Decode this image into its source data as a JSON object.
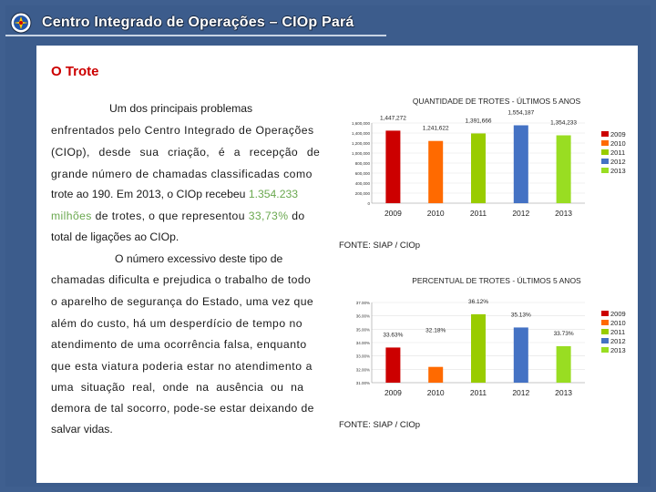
{
  "header": {
    "title": "Centro Integrado de Operações – CIOp Pará"
  },
  "section": {
    "title": "O Trote"
  },
  "paragraph1": {
    "lines": [
      "Um dos principais problemas",
      "enfrentados pelo Centro Integrado de Operações",
      "(CIOp), desde sua criação, é a recepção de",
      "grande número de chamadas classificadas como"
    ],
    "line5_a": "trote ao 190. Em 2013, o CIOp recebeu ",
    "line5_highlight": "1.354.233",
    "line6_highlight": "milhões",
    "line6_b": " de trotes, o que representou ",
    "line6_highlight2": "33,73%",
    "line6_c": " do",
    "line7": "total de ligações ao CIOp."
  },
  "paragraph2": {
    "lines": [
      "O número excessivo deste tipo de",
      "chamadas dificulta e prejudica o trabalho de todo",
      "o aparelho de segurança do Estado, uma vez que",
      "além do custo, há um desperdício de tempo no",
      "atendimento de uma ocorrência falsa, enquanto",
      "que esta viatura poderia estar no atendimento a",
      "uma situação real, onde na ausência ou na",
      "demora de tal socorro, pode-se estar deixando de",
      "salvar vidas."
    ]
  },
  "chart_data": [
    {
      "type": "bar",
      "title": "QUANTIDADE DE TROTES - ÚLTIMOS 5 ANOS",
      "categories": [
        "2009",
        "2010",
        "2011",
        "2012",
        "2013"
      ],
      "values": [
        1447272,
        1241622,
        1391666,
        1554187,
        1354233
      ],
      "data_labels": [
        "1,447,272",
        "1,241,622",
        "1,391,666",
        "1,554,187",
        "1,354,233"
      ],
      "colors": [
        "#cc0000",
        "#ff6a00",
        "#99cc00",
        "#4472c4",
        "#99dd22"
      ],
      "ylim": [
        0,
        1600000
      ],
      "yticks": [
        0,
        200000,
        400000,
        600000,
        800000,
        1000000,
        1200000,
        1400000,
        1600000
      ],
      "ytick_labels": [
        "0",
        "200,000",
        "400,000",
        "600,000",
        "800,000",
        "1,000,000",
        "1,200,000",
        "1,400,000",
        "1,600,000"
      ],
      "legend": [
        "2009",
        "2010",
        "2011",
        "2012",
        "2013"
      ],
      "legend_position": "right",
      "grid": true,
      "source": "FONTE: SIAP / CIOp"
    },
    {
      "type": "bar",
      "title": "PERCENTUAL DE TROTES - ÚLTIMOS 5 ANOS",
      "categories": [
        "2009",
        "2010",
        "2011",
        "2012",
        "2013"
      ],
      "values": [
        33.63,
        32.18,
        36.12,
        35.13,
        33.73
      ],
      "data_labels": [
        "33.63%",
        "32.18%",
        "36.12%",
        "35.13%",
        "33.73%"
      ],
      "colors": [
        "#cc0000",
        "#ff6a00",
        "#99cc00",
        "#4472c4",
        "#99dd22"
      ],
      "ylim": [
        31,
        37
      ],
      "yticks": [
        31,
        32,
        33,
        34,
        35,
        36,
        37
      ],
      "ytick_labels": [
        "31.00%",
        "32.00%",
        "33.00%",
        "34.00%",
        "35.00%",
        "36.00%",
        "37.00%"
      ],
      "legend": [
        "2009",
        "2010",
        "2011",
        "2012",
        "2013"
      ],
      "legend_position": "right",
      "grid": true,
      "source": "FONTE: SIAP / CIOp"
    }
  ]
}
